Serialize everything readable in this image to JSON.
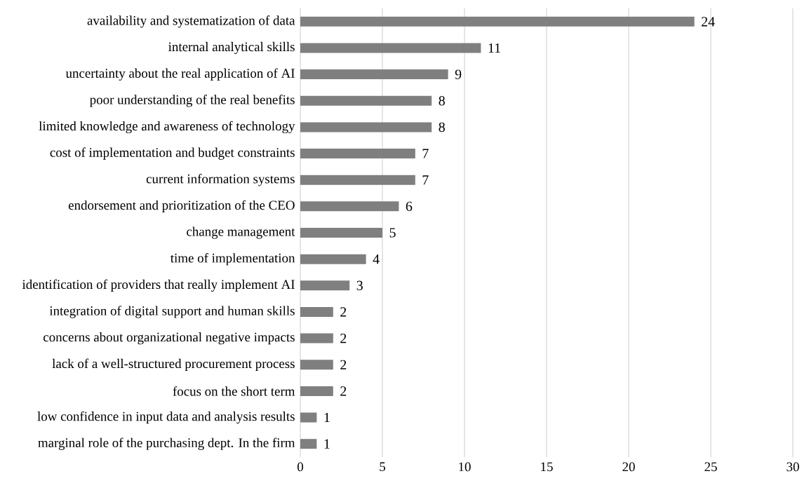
{
  "chart_data": {
    "type": "bar",
    "orientation": "horizontal",
    "categories": [
      "availability and systematization of data",
      "internal analytical skills",
      "uncertainty about the real application of AI",
      "poor understanding of the real benefits",
      "limited knowledge and awareness of technology",
      "cost of implementation and budget constraints",
      "current information systems",
      "endorsement and prioritization of the CEO",
      "change management",
      "time of implementation",
      "identification of providers that really implement AI",
      "integration of digital support and human skills",
      "concerns about organizational negative impacts",
      "lack of a well-structured procurement process",
      "focus on the short term",
      "low confidence in input data and analysis results",
      "marginal role of the purchasing dept. In the firm"
    ],
    "values": [
      24,
      11,
      9,
      8,
      8,
      7,
      7,
      6,
      5,
      4,
      3,
      2,
      2,
      2,
      2,
      1,
      1
    ],
    "color": "#7f7f7f",
    "xlim": [
      0,
      30
    ],
    "xticks": [
      0,
      5,
      10,
      15,
      20,
      25,
      30
    ],
    "grid": "x",
    "data_labels": true
  }
}
